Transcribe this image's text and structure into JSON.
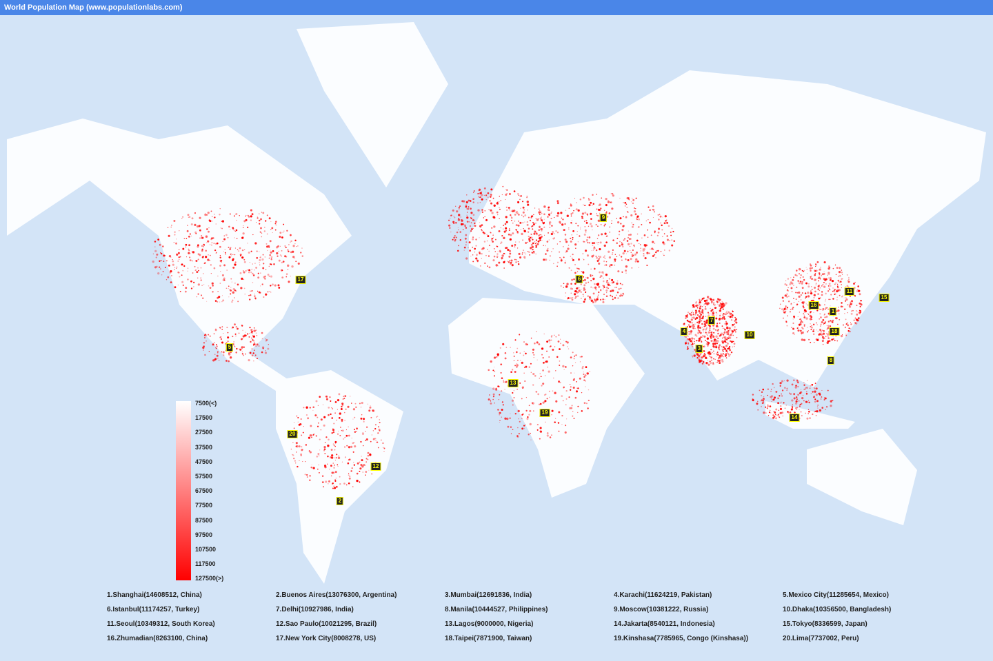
{
  "title": "World Population Map (www.populationlabs.com)",
  "colors": {
    "ocean": "#d3e4f7",
    "land": "#ffffff",
    "density": "#ff0000",
    "titlebar": "#4a86e8"
  },
  "legend": [
    "7500(<)",
    "17500",
    "27500",
    "37500",
    "47500",
    "57500",
    "67500",
    "77500",
    "87500",
    "97500",
    "107500",
    "117500",
    "127500(>)"
  ],
  "cities": [
    "1.Shanghai(14608512, China)",
    "2.Buenos Aires(13076300, Argentina)",
    "3.Mumbai(12691836, India)",
    "4.Karachi(11624219, Pakistan)",
    "5.Mexico City(11285654, Mexico)",
    "6.Istanbul(11174257, Turkey)",
    "7.Delhi(10927986, India)",
    "8.Manila(10444527, Philippines)",
    "9.Moscow(10381222, Russia)",
    "10.Dhaka(10356500, Bangladesh)",
    "11.Seoul(10349312, South Korea)",
    "12.Sao Paulo(10021295, Brazil)",
    "13.Lagos(9000000, Nigeria)",
    "14.Jakarta(8540121, Indonesia)",
    "15.Tokyo(8336599, Japan)",
    "16.Zhumadian(8263100, China)",
    "17.New York City(8008278, US)",
    "18.Taipei(7871900, Taiwan)",
    "19.Kinshasa(7785965, Congo (Kinshasa))",
    "20.Lima(7737002, Peru)"
  ],
  "markers": [
    "1",
    "2",
    "3",
    "4",
    "5",
    "6",
    "7",
    "8",
    "9",
    "10",
    "11",
    "12",
    "13",
    "14",
    "15",
    "16",
    "17",
    "18",
    "19",
    "20"
  ]
}
